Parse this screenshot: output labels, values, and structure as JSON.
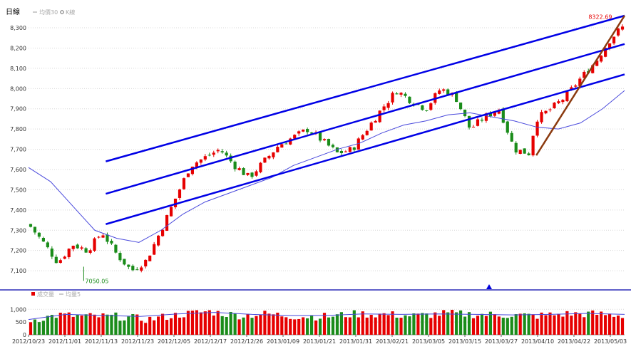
{
  "title": "日線",
  "legend": {
    "ma_label": "均價30",
    "k_label": "K線",
    "volume_label": "成交量",
    "vol_ma_label": "均量5"
  },
  "colors": {
    "up": "#e60000",
    "down": "#1a8c1a",
    "channel": "#0000e6",
    "trend": "#8b3a0f",
    "ma": "#4a4adc",
    "separator": "#0000aa",
    "high_label": "#e60000",
    "low_label": "#1a8c1a"
  },
  "annotations": {
    "high_label": "8322.69",
    "low_label": "7050.05"
  },
  "chart_data": [
    {
      "type": "candlestick",
      "title": "",
      "y_ticks": [
        "8,300",
        "8,200",
        "8,100",
        "8,000",
        "7,900",
        "7,800",
        "7,700",
        "7,600",
        "7,500",
        "7,400",
        "7,300",
        "7,200",
        "7,100"
      ],
      "y_values": [
        8300,
        8200,
        8100,
        8000,
        7900,
        7800,
        7700,
        7600,
        7500,
        7400,
        7300,
        7200,
        7100
      ],
      "ylim": [
        7030,
        8360
      ],
      "n_bars": 140,
      "anchors": [
        [
          0,
          7330
        ],
        [
          4,
          7240
        ],
        [
          8,
          7140
        ],
        [
          12,
          7230
        ],
        [
          16,
          7200
        ],
        [
          20,
          7290
        ],
        [
          24,
          7180
        ],
        [
          28,
          7100
        ],
        [
          32,
          7150
        ],
        [
          36,
          7300
        ],
        [
          40,
          7460
        ],
        [
          44,
          7620
        ],
        [
          48,
          7660
        ],
        [
          52,
          7700
        ],
        [
          56,
          7620
        ],
        [
          60,
          7560
        ],
        [
          64,
          7640
        ],
        [
          68,
          7720
        ],
        [
          72,
          7760
        ],
        [
          76,
          7800
        ],
        [
          80,
          7740
        ],
        [
          84,
          7680
        ],
        [
          88,
          7700
        ],
        [
          92,
          7800
        ],
        [
          96,
          7900
        ],
        [
          100,
          7990
        ],
        [
          104,
          7940
        ],
        [
          108,
          7900
        ],
        [
          112,
          8000
        ],
        [
          116,
          7960
        ],
        [
          120,
          7800
        ],
        [
          124,
          7860
        ],
        [
          128,
          7900
        ],
        [
          132,
          7700
        ],
        [
          136,
          7680
        ],
        [
          138,
          7850
        ],
        [
          142,
          7900
        ],
        [
          146,
          7960
        ],
        [
          150,
          8050
        ],
        [
          154,
          8130
        ],
        [
          158,
          8240
        ],
        [
          160,
          8280
        ],
        [
          162,
          8310
        ]
      ],
      "anchor_scale": 162,
      "high": {
        "value": 8322.69
      },
      "low": {
        "value": 7050.05
      },
      "ma30": [
        [
          0,
          7610
        ],
        [
          6,
          7540
        ],
        [
          12,
          7420
        ],
        [
          18,
          7300
        ],
        [
          24,
          7260
        ],
        [
          30,
          7240
        ],
        [
          36,
          7300
        ],
        [
          42,
          7380
        ],
        [
          48,
          7440
        ],
        [
          54,
          7480
        ],
        [
          60,
          7520
        ],
        [
          66,
          7560
        ],
        [
          72,
          7620
        ],
        [
          78,
          7660
        ],
        [
          84,
          7700
        ],
        [
          90,
          7730
        ],
        [
          96,
          7780
        ],
        [
          102,
          7820
        ],
        [
          108,
          7840
        ],
        [
          114,
          7870
        ],
        [
          120,
          7880
        ],
        [
          126,
          7860
        ],
        [
          132,
          7840
        ],
        [
          138,
          7810
        ],
        [
          144,
          7800
        ],
        [
          150,
          7830
        ],
        [
          156,
          7900
        ],
        [
          162,
          7990
        ]
      ],
      "channel_lines": [
        {
          "name": "upper",
          "from": [
            21,
            7640
          ],
          "to": [
            162,
            8360
          ]
        },
        {
          "name": "middle",
          "from": [
            21,
            7480
          ],
          "to": [
            162,
            8220
          ]
        },
        {
          "name": "lower",
          "from": [
            21,
            7330
          ],
          "to": [
            162,
            8070
          ]
        }
      ],
      "trend_line": {
        "from": [
          138,
          7670
        ],
        "to": [
          162,
          8360
        ]
      }
    },
    {
      "type": "bar",
      "title": "",
      "y_ticks": [
        "1,000",
        "500",
        "0"
      ],
      "y_values": [
        1000,
        500,
        0
      ],
      "ylim": [
        0,
        1400
      ],
      "x_ticks": [
        "2012/10/23",
        "2012/11/01",
        "2012/11/13",
        "2012/11/23",
        "2012/12/05",
        "2012/12/17",
        "2012/12/26",
        "2013/01/09",
        "2013/01/21",
        "2013/01/31",
        "2013/02/21",
        "2013/03/05",
        "2013/03/15",
        "2013/03/27",
        "2013/04/10",
        "2013/04/22",
        "2013/05/03"
      ],
      "volume_profile": [
        [
          0,
          560
        ],
        [
          8,
          780
        ],
        [
          16,
          720
        ],
        [
          24,
          720
        ],
        [
          32,
          600
        ],
        [
          40,
          780
        ],
        [
          48,
          920
        ],
        [
          56,
          760
        ],
        [
          64,
          820
        ],
        [
          72,
          720
        ],
        [
          80,
          720
        ],
        [
          88,
          820
        ],
        [
          96,
          800
        ],
        [
          104,
          740
        ],
        [
          112,
          840
        ],
        [
          120,
          800
        ],
        [
          128,
          780
        ],
        [
          136,
          740
        ],
        [
          144,
          820
        ],
        [
          152,
          820
        ],
        [
          160,
          760
        ]
      ],
      "vol_ma5": [
        [
          0,
          600
        ],
        [
          10,
          800
        ],
        [
          20,
          760
        ],
        [
          30,
          720
        ],
        [
          40,
          820
        ],
        [
          50,
          880
        ],
        [
          60,
          800
        ],
        [
          70,
          760
        ],
        [
          80,
          760
        ],
        [
          90,
          820
        ],
        [
          100,
          800
        ],
        [
          110,
          820
        ],
        [
          120,
          800
        ],
        [
          130,
          780
        ],
        [
          140,
          800
        ],
        [
          150,
          840
        ],
        [
          160,
          800
        ]
      ]
    }
  ]
}
